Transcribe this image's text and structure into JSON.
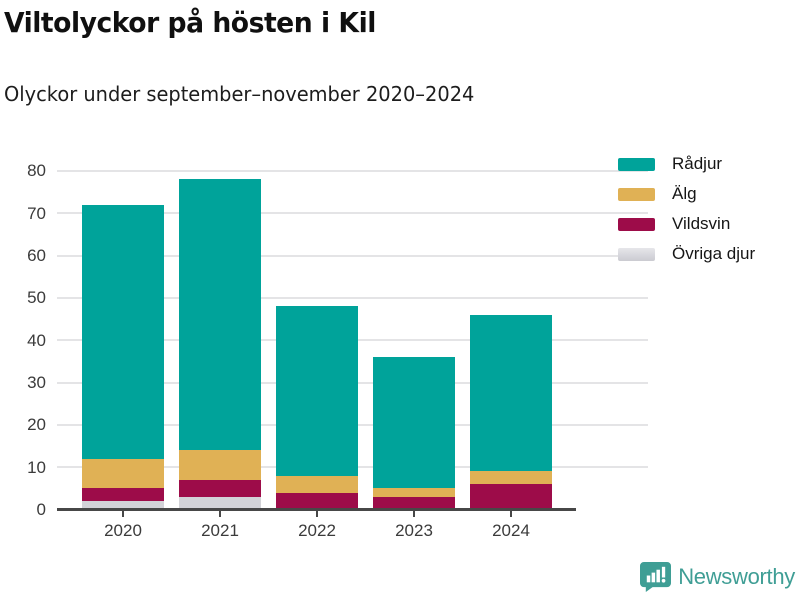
{
  "header": {
    "title": "Viltolyckor på hösten i Kil",
    "subtitle": "Olyckor under september–november 2020–2024"
  },
  "chart_data": {
    "type": "bar",
    "stacked": true,
    "title": "Viltolyckor på hösten i Kil",
    "subtitle": "Olyckor under september–november 2020–2024",
    "categories": [
      "2020",
      "2021",
      "2022",
      "2023",
      "2024"
    ],
    "series": [
      {
        "name": "Rådjur",
        "color": "#00a39a",
        "values": [
          60,
          64,
          40,
          31,
          37
        ]
      },
      {
        "name": "Älg",
        "color": "#e0b155",
        "values": [
          7,
          7,
          4,
          2,
          3
        ]
      },
      {
        "name": "Vildsvin",
        "color": "#9d0c49",
        "values": [
          3,
          4,
          4,
          3,
          6
        ]
      },
      {
        "name": "Övriga djur",
        "color": "#d3d3d8",
        "values": [
          2,
          3,
          0,
          0,
          0
        ]
      }
    ],
    "totals": [
      72,
      78,
      48,
      36,
      46
    ],
    "xlabel": "",
    "ylabel": "",
    "ylim": [
      0,
      80
    ],
    "yticks": [
      0,
      10,
      20,
      30,
      40,
      50,
      60,
      70,
      80
    ],
    "grid": true,
    "legend_position": "top-right",
    "legend_order": [
      "Rådjur",
      "Älg",
      "Vildsvin",
      "Övriga djur"
    ]
  },
  "colors": {
    "grid": "#e4e4e6",
    "axis": "#474747",
    "tick_label": "#3b3b3b",
    "brand_teal": "#3f9e95"
  },
  "footer": {
    "brand": "Newsworthy"
  }
}
